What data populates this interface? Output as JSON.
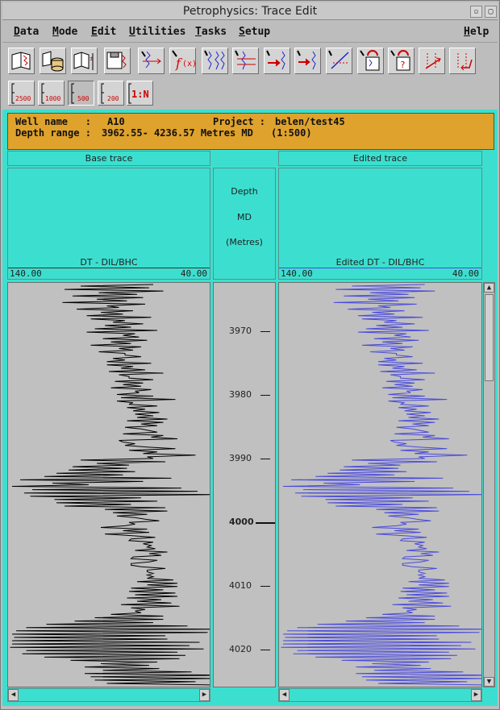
{
  "window": {
    "title": "Petrophysics: Trace Edit"
  },
  "menu": {
    "items": [
      {
        "label": "Data",
        "ul": "D",
        "rest": "ata"
      },
      {
        "label": "Mode",
        "ul": "M",
        "rest": "ode"
      },
      {
        "label": "Edit",
        "ul": "E",
        "rest": "dit"
      },
      {
        "label": "Utilities",
        "ul": "U",
        "rest": "tilities"
      },
      {
        "label": "Tasks",
        "ul": "T",
        "rest": "asks"
      },
      {
        "label": "Setup",
        "ul": "S",
        "rest": "etup"
      },
      {
        "label": "Help",
        "ul": "H",
        "rest": "elp"
      }
    ]
  },
  "toolbar": {
    "tools": [
      "load-trace-icon",
      "load-database-icon",
      "load-multi-trace-icon",
      "save-trace-icon",
      "shift-trace-icon",
      "function-fx-icon",
      "splice-trace-icon",
      "baseline-trace-icon",
      "depth-shift-icon",
      "patch-trace-icon",
      "draw-line-icon",
      "undo-edit-icon",
      "undo-query-icon",
      "points-up-icon",
      "points-down-icon"
    ]
  },
  "scales": [
    {
      "label": "2500",
      "selected": false
    },
    {
      "label": "1000",
      "selected": false
    },
    {
      "label": "500",
      "selected": true
    },
    {
      "label": "200",
      "selected": false
    },
    {
      "label": "1:N",
      "selected": false
    }
  ],
  "info": {
    "well_label": "Well name   :",
    "well_value": "A10",
    "project_label": "Project :",
    "project_value": "belen/test45",
    "depth_label": "Depth range :",
    "depth_value": "3962.55- 4236.57 Metres MD",
    "scale_value": "(1:500)"
  },
  "base_panel": {
    "title": "Base trace",
    "trace_name": "DT - DIL/BHC",
    "left": "140.00",
    "right": "40.00"
  },
  "edited_panel": {
    "title": "Edited trace",
    "trace_name": "Edited DT - DIL/BHC",
    "left": "140.00",
    "right": "40.00"
  },
  "depth_header": {
    "line1": "Depth",
    "line2": "MD",
    "line3": "(Metres)"
  },
  "depth_ticks": [
    {
      "label": "3970",
      "major": false
    },
    {
      "label": "3980",
      "major": false
    },
    {
      "label": "3990",
      "major": false
    },
    {
      "label": "4000",
      "major": true
    },
    {
      "label": "4010",
      "major": false
    },
    {
      "label": "4020",
      "major": false
    }
  ],
  "colors": {
    "teal": "#3cdfcf",
    "info_bg": "#dfa22c",
    "base_trace": "#000000",
    "edited_trace": "#4a4adc"
  },
  "trace_values": [
    68,
    104,
    70,
    112,
    63,
    95,
    76,
    108,
    73,
    96,
    81,
    113,
    72,
    91,
    85,
    106,
    78,
    94,
    83,
    101,
    69,
    99,
    82,
    88,
    73,
    92,
    79,
    97,
    66,
    101,
    77,
    83,
    75,
    93,
    71,
    89,
    79,
    99,
    74,
    85,
    78,
    95,
    82,
    82,
    74,
    88,
    82,
    91,
    69,
    91,
    78,
    84,
    72,
    90,
    63,
    85,
    80,
    80,
    68,
    87,
    73,
    83,
    74,
    89,
    69,
    77,
    75,
    86,
    68,
    84,
    57,
    86,
    78,
    80,
    66,
    81,
    72,
    78,
    65,
    77,
    68,
    76,
    61,
    81,
    63,
    74,
    66,
    82,
    74,
    70,
    66,
    83,
    63,
    69,
    56,
    85,
    83,
    77,
    82,
    71,
    57,
    80,
    66,
    73,
    47,
    71,
    68,
    104,
    62,
    96,
    80,
    108,
    81,
    110,
    77,
    116,
    83,
    122,
    59,
    134,
    73,
    118,
    100,
    138,
    54,
    128,
    46,
    132,
    36,
    129,
    74,
    117,
    66,
    116,
    79,
    112,
    62,
    92,
    61,
    88,
    71,
    86,
    77,
    72,
    65,
    80,
    77,
    82,
    94,
    71,
    83,
    70,
    92,
    79,
    67,
    79,
    80,
    68,
    73,
    69,
    71,
    67,
    77,
    61,
    70,
    64,
    78,
    79,
    66,
    70,
    79,
    79,
    74,
    62,
    71,
    71,
    68,
    71,
    68,
    71,
    58,
    76,
    56,
    71,
    56,
    79,
    63,
    80,
    57,
    77,
    56,
    81,
    64,
    76,
    59,
    84,
    55,
    79,
    72,
    77,
    74,
    89,
    63,
    97,
    63,
    107,
    68,
    121,
    51,
    131,
    38,
    136,
    41,
    138,
    62,
    137,
    61,
    138,
    45,
    138,
    50,
    139,
    43,
    131,
    56,
    133,
    52,
    122,
    55,
    109,
    66,
    94,
    70,
    102,
    65,
    93,
    49,
    102,
    33,
    99,
    38,
    97,
    47,
    91,
    35
  ]
}
